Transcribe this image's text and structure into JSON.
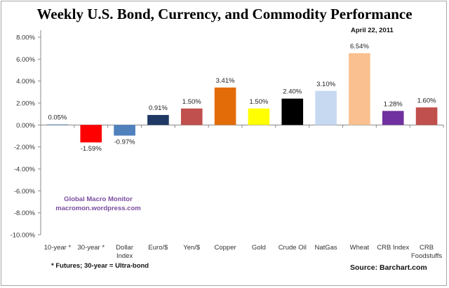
{
  "chart_data": {
    "type": "bar",
    "title": "Weekly U.S. Bond, Currency, and Commodity Performance",
    "subtitle": "April 22, 2011",
    "xlabel": "",
    "ylabel": "",
    "ylim": [
      -10,
      8
    ],
    "yticks": [
      8,
      6,
      4,
      2,
      0,
      -2,
      -4,
      -6,
      -8,
      -10
    ],
    "ytick_labels": [
      "8.00%",
      "6.00%",
      "4.00%",
      "2.00%",
      "0.00%",
      "-2.00%",
      "-4.00%",
      "-6.00%",
      "-8.00%",
      "-10.00%"
    ],
    "grid": false,
    "legend": "none",
    "categories": [
      [
        "10-year *"
      ],
      [
        "30-year *"
      ],
      [
        "Dollar",
        "Index"
      ],
      [
        "Euro/$"
      ],
      [
        "Yen/$"
      ],
      [
        "Copper"
      ],
      [
        "Gold"
      ],
      [
        "Crude Oil"
      ],
      [
        "NatGas"
      ],
      [
        "Wheat"
      ],
      [
        "CRB Index"
      ],
      [
        "CRB",
        "Foodstuffs"
      ]
    ],
    "values": [
      0.05,
      -1.59,
      -0.97,
      0.91,
      1.5,
      3.41,
      1.5,
      2.4,
      3.1,
      6.54,
      1.28,
      1.6
    ],
    "data_labels": [
      "0.05%",
      "-1.59%",
      "-0.97%",
      "0.91%",
      "1.50%",
      "3.41%",
      "1.50%",
      "2.40%",
      "3.10%",
      "6.54%",
      "1.28%",
      "1.60%"
    ],
    "colors": [
      "#4f81bd",
      "#ff0000",
      "#4f81bd",
      "#1f3864",
      "#c0504d",
      "#e36c09",
      "#ffff00",
      "#000000",
      "#c6d9f1",
      "#fac090",
      "#7030a0",
      "#c0504d"
    ],
    "annotations": {
      "watermark_line1": "Global Macro Monitor",
      "watermark_line2": "macromon.wordpress.com",
      "footnote": "* Futures; 30-year = Ultra-bond",
      "source": "Source: Barchart.com"
    }
  }
}
